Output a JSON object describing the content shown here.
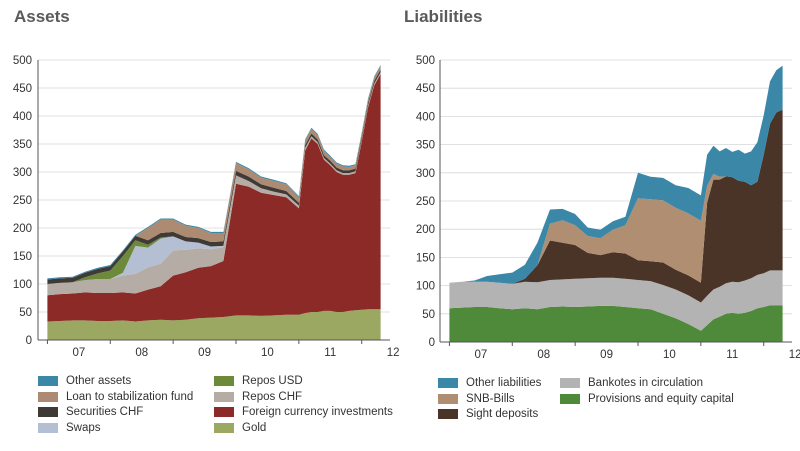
{
  "colors": {
    "gold": "#9aa862",
    "fx": "#8b2a26",
    "repos_chf": "#b6aca6",
    "swaps": "#b4bfd3",
    "repos_usd": "#6c8a3a",
    "securities_chf": "#3f3a36",
    "loan": "#ad8a72",
    "other_assets": "#3a87a8",
    "provisions": "#4f8a3a",
    "banknotes": "#b3b3b3",
    "sight": "#4a3327",
    "snb_bills": "#b08e72",
    "other_liab": "#3a87a8"
  },
  "chart_data": [
    {
      "type": "area",
      "stacked": true,
      "title": "Assets",
      "xlabel": "",
      "ylabel": "",
      "ylim": [
        0,
        500
      ],
      "yticks": [
        "0",
        "50",
        "100",
        "150",
        "200",
        "250",
        "300",
        "350",
        "400",
        "450",
        "500"
      ],
      "xticks": [
        "07",
        "08",
        "09",
        "10",
        "11",
        "12"
      ],
      "x": [
        2007.0,
        2007.2,
        2007.4,
        2007.6,
        2007.8,
        2008.0,
        2008.2,
        2008.4,
        2008.6,
        2008.8,
        2009.0,
        2009.2,
        2009.4,
        2009.6,
        2009.8,
        2010.0,
        2010.2,
        2010.4,
        2010.6,
        2010.8,
        2011.0,
        2011.1,
        2011.2,
        2011.3,
        2011.4,
        2011.5,
        2011.6,
        2011.7,
        2011.8,
        2011.9,
        2012.0,
        2012.1,
        2012.2,
        2012.3
      ],
      "series": [
        {
          "name": "Gold",
          "color_key": "gold",
          "values": [
            33,
            34,
            35,
            35,
            34,
            34,
            35,
            33,
            35,
            36,
            35,
            36,
            39,
            40,
            41,
            44,
            44,
            43,
            44,
            45,
            45,
            48,
            50,
            50,
            52,
            52,
            50,
            50,
            52,
            53,
            54,
            55,
            55,
            55
          ]
        },
        {
          "name": "Foreign currency investments",
          "color_key": "fx",
          "values": [
            47,
            48,
            48,
            50,
            50,
            50,
            50,
            50,
            55,
            60,
            80,
            85,
            90,
            92,
            100,
            235,
            230,
            220,
            215,
            210,
            190,
            290,
            310,
            300,
            270,
            260,
            250,
            245,
            243,
            245,
            300,
            360,
            400,
            420
          ]
        },
        {
          "name": "Repos CHF",
          "color_key": "repos_chf",
          "values": [
            20,
            20,
            20,
            22,
            25,
            25,
            30,
            35,
            40,
            40,
            45,
            40,
            35,
            30,
            25,
            15,
            10,
            8,
            6,
            5,
            5,
            5,
            4,
            3,
            3,
            3,
            3,
            3,
            3,
            3,
            3,
            3,
            3,
            3
          ]
        },
        {
          "name": "Swaps",
          "color_key": "swaps",
          "values": [
            0,
            0,
            0,
            0,
            0,
            0,
            5,
            50,
            35,
            45,
            25,
            15,
            10,
            5,
            2,
            0,
            0,
            0,
            0,
            0,
            0,
            0,
            0,
            0,
            0,
            0,
            0,
            0,
            0,
            0,
            0,
            0,
            0,
            0
          ]
        },
        {
          "name": "Repos USD",
          "color_key": "repos_usd",
          "values": [
            0,
            0,
            0,
            5,
            10,
            15,
            30,
            10,
            5,
            2,
            0,
            0,
            0,
            0,
            0,
            0,
            0,
            0,
            0,
            0,
            0,
            0,
            0,
            0,
            0,
            0,
            0,
            0,
            0,
            0,
            0,
            0,
            0,
            0
          ]
        },
        {
          "name": "Securities CHF",
          "color_key": "securities_chf",
          "values": [
            8,
            8,
            8,
            8,
            8,
            8,
            8,
            8,
            8,
            8,
            8,
            8,
            8,
            8,
            8,
            8,
            8,
            7,
            7,
            6,
            5,
            5,
            5,
            5,
            5,
            5,
            5,
            5,
            5,
            5,
            5,
            5,
            5,
            5
          ]
        },
        {
          "name": "Loan to stabilization fund",
          "color_key": "loan",
          "values": [
            0,
            0,
            0,
            0,
            0,
            0,
            0,
            0,
            22,
            24,
            22,
            20,
            18,
            16,
            15,
            14,
            13,
            12,
            12,
            12,
            10,
            8,
            8,
            8,
            8,
            7,
            7,
            7,
            6,
            6,
            6,
            6,
            6,
            6
          ]
        },
        {
          "name": "Other assets",
          "color_key": "other_assets",
          "values": [
            2,
            2,
            2,
            2,
            2,
            2,
            2,
            2,
            2,
            2,
            2,
            2,
            2,
            2,
            2,
            2,
            2,
            2,
            2,
            2,
            2,
            2,
            2,
            2,
            2,
            2,
            2,
            2,
            2,
            2,
            2,
            2,
            2,
            2
          ]
        }
      ]
    },
    {
      "type": "area",
      "stacked": true,
      "title": "Liabilities",
      "xlabel": "",
      "ylabel": "",
      "ylim": [
        0,
        500
      ],
      "yticks": [
        "0",
        "50",
        "100",
        "150",
        "200",
        "250",
        "300",
        "350",
        "400",
        "450",
        "500"
      ],
      "xticks": [
        "07",
        "08",
        "09",
        "10",
        "11",
        "12"
      ],
      "x": [
        2007.0,
        2007.2,
        2007.4,
        2007.6,
        2007.8,
        2008.0,
        2008.2,
        2008.4,
        2008.6,
        2008.8,
        2009.0,
        2009.2,
        2009.4,
        2009.6,
        2009.8,
        2010.0,
        2010.2,
        2010.4,
        2010.6,
        2010.8,
        2011.0,
        2011.1,
        2011.2,
        2011.3,
        2011.4,
        2011.5,
        2011.6,
        2011.7,
        2011.8,
        2011.9,
        2012.0,
        2012.1,
        2012.2,
        2012.3
      ],
      "series": [
        {
          "name": "Provisions and equity capital",
          "color_key": "provisions",
          "values": [
            60,
            61,
            62,
            62,
            60,
            58,
            60,
            58,
            62,
            63,
            62,
            63,
            64,
            64,
            62,
            60,
            58,
            50,
            42,
            32,
            20,
            30,
            40,
            45,
            50,
            52,
            50,
            52,
            55,
            60,
            62,
            65,
            65,
            65
          ]
        },
        {
          "name": "Bankotes in circulation",
          "color_key": "banknotes",
          "values": [
            45,
            46,
            45,
            45,
            45,
            45,
            47,
            48,
            48,
            48,
            50,
            50,
            50,
            50,
            50,
            50,
            50,
            51,
            51,
            51,
            50,
            52,
            53,
            53,
            54,
            55,
            56,
            57,
            58,
            59,
            60,
            62,
            62,
            62
          ]
        },
        {
          "name": "Sight deposits",
          "color_key": "sight",
          "values": [
            0,
            0,
            0,
            0,
            0,
            0,
            5,
            30,
            70,
            65,
            60,
            45,
            40,
            45,
            45,
            35,
            35,
            40,
            35,
            35,
            35,
            165,
            195,
            190,
            190,
            185,
            180,
            175,
            165,
            165,
            210,
            260,
            280,
            285
          ]
        },
        {
          "name": "SNB-Bills",
          "color_key": "snb_bills",
          "values": [
            0,
            0,
            0,
            0,
            0,
            0,
            0,
            0,
            30,
            40,
            35,
            30,
            30,
            40,
            50,
            110,
            110,
            110,
            110,
            110,
            110,
            30,
            10,
            5,
            0,
            0,
            0,
            0,
            0,
            0,
            0,
            0,
            0,
            0
          ]
        },
        {
          "name": "Other liabilities",
          "color_key": "other_liab",
          "values": [
            0,
            0,
            2,
            10,
            15,
            20,
            25,
            40,
            25,
            20,
            20,
            15,
            15,
            15,
            15,
            45,
            40,
            40,
            40,
            45,
            45,
            55,
            50,
            45,
            50,
            45,
            55,
            50,
            60,
            70,
            70,
            75,
            75,
            78
          ]
        }
      ]
    }
  ],
  "assets_title": "Assets",
  "liabilities_title": "Liabilities",
  "legend_assets": [
    {
      "label": "Other assets",
      "color_key": "other_assets"
    },
    {
      "label": "Repos USD",
      "color_key": "repos_usd"
    },
    {
      "label": "Loan to stabilization fund",
      "color_key": "loan"
    },
    {
      "label": "Repos CHF",
      "color_key": "repos_chf"
    },
    {
      "label": "Securities CHF",
      "color_key": "securities_chf"
    },
    {
      "label": "Foreign currency investments",
      "color_key": "fx"
    },
    {
      "label": "Swaps",
      "color_key": "swaps"
    },
    {
      "label": "Gold",
      "color_key": "gold"
    }
  ],
  "legend_liabilities": [
    {
      "label": "Other liabilities",
      "color_key": "other_liab"
    },
    {
      "label": "Bankotes in circulation",
      "color_key": "banknotes"
    },
    {
      "label": "SNB-Bills",
      "color_key": "snb_bills"
    },
    {
      "label": "Provisions and equity capital",
      "color_key": "provisions"
    },
    {
      "label": "Sight deposits",
      "color_key": "sight"
    }
  ]
}
